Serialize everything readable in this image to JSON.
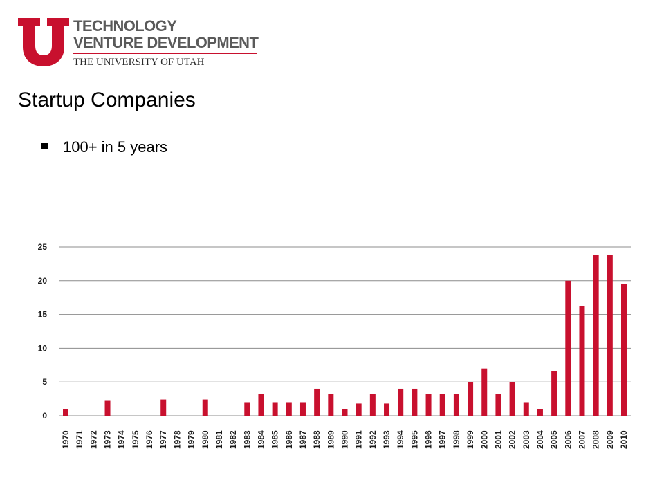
{
  "header": {
    "logo_line1": "TECHNOLOGY",
    "logo_line2": "VENTURE DEVELOPMENT",
    "logo_line3": "THE UNIVERSITY OF UTAH",
    "brand_color": "#c8102e"
  },
  "slide": {
    "title": "Startup Companies",
    "bullets": [
      "100+ in 5 years"
    ]
  },
  "chart_data": {
    "type": "bar",
    "title": "",
    "xlabel": "",
    "ylabel": "",
    "ylim": [
      0,
      25
    ],
    "yticks": [
      0,
      5,
      10,
      15,
      20,
      25
    ],
    "grid": true,
    "bar_color": "#c8102e",
    "categories": [
      "1970",
      "1971",
      "1972",
      "1973",
      "1974",
      "1975",
      "1976",
      "1977",
      "1978",
      "1979",
      "1980",
      "1981",
      "1982",
      "1983",
      "1984",
      "1985",
      "1986",
      "1987",
      "1988",
      "1989",
      "1990",
      "1991",
      "1992",
      "1993",
      "1994",
      "1995",
      "1996",
      "1997",
      "1998",
      "1999",
      "2000",
      "2001",
      "2002",
      "2003",
      "2004",
      "2005",
      "2006",
      "2007",
      "2008",
      "2009",
      "2010"
    ],
    "values": [
      1,
      0,
      0,
      2.2,
      0,
      0,
      0,
      2.4,
      0,
      0,
      2.4,
      0,
      0,
      2,
      3.2,
      2,
      2,
      2,
      4,
      3.2,
      1,
      1.8,
      3.2,
      1.8,
      4,
      4,
      3.2,
      3.2,
      3.2,
      5,
      7,
      3.2,
      5,
      2,
      1,
      6.6,
      20,
      16.2,
      23.8,
      23.8,
      19.5
    ]
  }
}
